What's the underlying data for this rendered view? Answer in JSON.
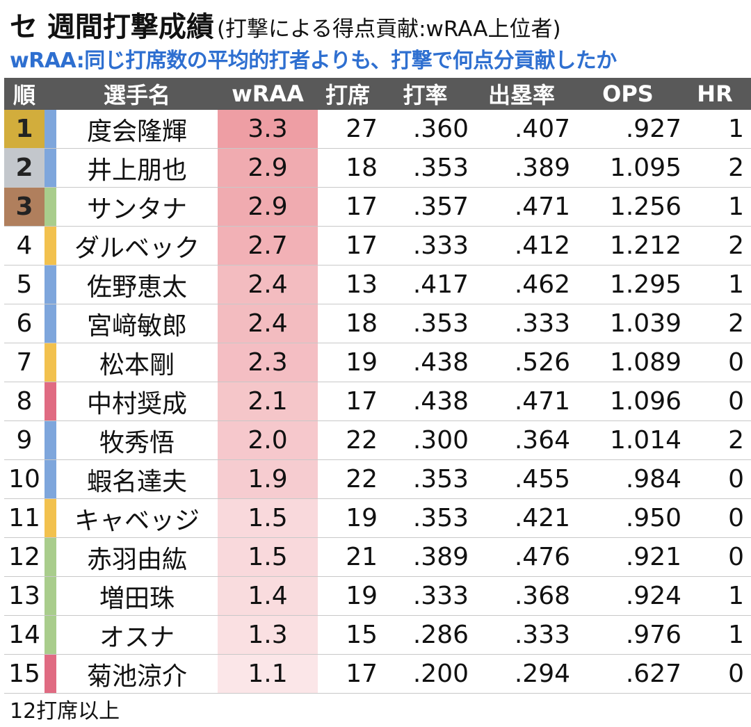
{
  "title": {
    "main": "セ 週間打撃成績",
    "sub": "(打撃による得点貢献:wRAA上位者)"
  },
  "subtitle": "wRAA:同じ打席数の平均的打者よりも、打撃で何点分貢献したか",
  "headers": {
    "rank": "順",
    "name": "選手名",
    "wraa": "wRAA",
    "pa": "打席",
    "avg": "打率",
    "obp": "出塁率",
    "ops": "OPS",
    "hr": "HR"
  },
  "colors": {
    "header_bg": "#595959",
    "subtitle": "#2e6fd0",
    "gold": "#d2ad3c",
    "silver": "#c3c7cc",
    "bronze": "#b07f5d",
    "team_blue": "#7ea6dc",
    "team_yellow": "#f2c14e",
    "team_green": "#a9cd8c",
    "team_pink": "#e06b82"
  },
  "rows": [
    {
      "rank": "1",
      "medal": "#d2ad3c",
      "team_color": "#7ea6dc",
      "name": "度会隆輝",
      "wraa": "3.3",
      "wraa_level": 1.0,
      "pa": "27",
      "avg": ".360",
      "obp": ".407",
      "ops": ".927",
      "hr": "1"
    },
    {
      "rank": "2",
      "medal": "#c3c7cc",
      "team_color": "#7ea6dc",
      "name": "井上朋也",
      "wraa": "2.9",
      "wraa_level": 0.82,
      "pa": "18",
      "avg": ".353",
      "obp": ".389",
      "ops": "1.095",
      "hr": "2"
    },
    {
      "rank": "3",
      "medal": "#b07f5d",
      "team_color": "#a9cd8c",
      "name": "サンタナ",
      "wraa": "2.9",
      "wraa_level": 0.82,
      "pa": "17",
      "avg": ".357",
      "obp": ".471",
      "ops": "1.256",
      "hr": "1"
    },
    {
      "rank": "4",
      "medal": "",
      "team_color": "#f2c14e",
      "name": "ダルベック",
      "wraa": "2.7",
      "wraa_level": 0.73,
      "pa": "17",
      "avg": ".333",
      "obp": ".412",
      "ops": "1.212",
      "hr": "2"
    },
    {
      "rank": "5",
      "medal": "",
      "team_color": "#7ea6dc",
      "name": "佐野恵太",
      "wraa": "2.4",
      "wraa_level": 0.59,
      "pa": "13",
      "avg": ".417",
      "obp": ".462",
      "ops": "1.295",
      "hr": "1"
    },
    {
      "rank": "6",
      "medal": "",
      "team_color": "#7ea6dc",
      "name": "宮﨑敏郎",
      "wraa": "2.4",
      "wraa_level": 0.59,
      "pa": "18",
      "avg": ".353",
      "obp": ".333",
      "ops": "1.039",
      "hr": "2"
    },
    {
      "rank": "7",
      "medal": "",
      "team_color": "#f2c14e",
      "name": "松本剛",
      "wraa": "2.3",
      "wraa_level": 0.55,
      "pa": "19",
      "avg": ".438",
      "obp": ".526",
      "ops": "1.089",
      "hr": "0"
    },
    {
      "rank": "8",
      "medal": "",
      "team_color": "#e06b82",
      "name": "中村奨成",
      "wraa": "2.1",
      "wraa_level": 0.45,
      "pa": "17",
      "avg": ".438",
      "obp": ".471",
      "ops": "1.096",
      "hr": "0"
    },
    {
      "rank": "9",
      "medal": "",
      "team_color": "#7ea6dc",
      "name": "牧秀悟",
      "wraa": "2.0",
      "wraa_level": 0.41,
      "pa": "22",
      "avg": ".300",
      "obp": ".364",
      "ops": "1.014",
      "hr": "2"
    },
    {
      "rank": "10",
      "medal": "",
      "team_color": "#7ea6dc",
      "name": "蝦名達夫",
      "wraa": "1.9",
      "wraa_level": 0.36,
      "pa": "22",
      "avg": ".353",
      "obp": ".455",
      "ops": ".984",
      "hr": "0"
    },
    {
      "rank": "11",
      "medal": "",
      "team_color": "#f2c14e",
      "name": "キャベッジ",
      "wraa": "1.5",
      "wraa_level": 0.18,
      "pa": "19",
      "avg": ".353",
      "obp": ".421",
      "ops": ".950",
      "hr": "0"
    },
    {
      "rank": "12",
      "medal": "",
      "team_color": "#a9cd8c",
      "name": "赤羽由紘",
      "wraa": "1.5",
      "wraa_level": 0.18,
      "pa": "21",
      "avg": ".389",
      "obp": ".476",
      "ops": ".921",
      "hr": "0"
    },
    {
      "rank": "13",
      "medal": "",
      "team_color": "#a9cd8c",
      "name": "増田珠",
      "wraa": "1.4",
      "wraa_level": 0.14,
      "pa": "19",
      "avg": ".333",
      "obp": ".368",
      "ops": ".924",
      "hr": "1"
    },
    {
      "rank": "14",
      "medal": "",
      "team_color": "#a9cd8c",
      "name": "オスナ",
      "wraa": "1.3",
      "wraa_level": 0.09,
      "pa": "15",
      "avg": ".286",
      "obp": ".333",
      "ops": ".976",
      "hr": "1"
    },
    {
      "rank": "15",
      "medal": "",
      "team_color": "#e06b82",
      "name": "菊池涼介",
      "wraa": "1.1",
      "wraa_level": 0.0,
      "pa": "17",
      "avg": ".200",
      "obp": ".294",
      "ops": ".627",
      "hr": "0"
    }
  ],
  "footnote": "12打席以上"
}
